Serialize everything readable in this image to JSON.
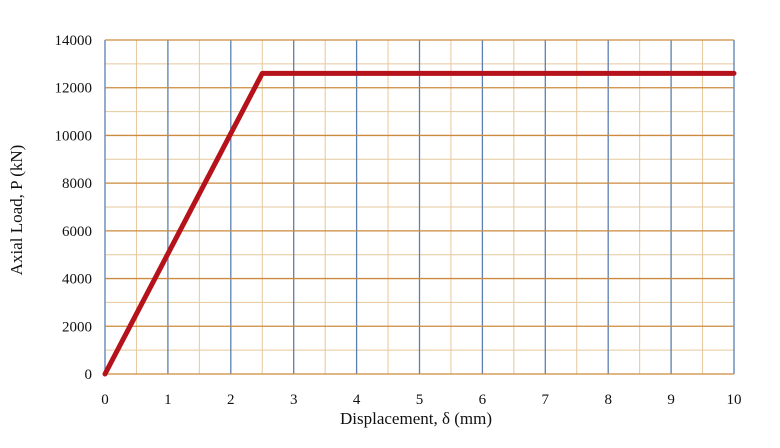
{
  "chart_data": {
    "type": "line",
    "xlabel": "Displacement, δ (mm)",
    "ylabel": "Axial Load, P (kN)",
    "xlim": [
      0,
      10
    ],
    "ylim": [
      0,
      14000
    ],
    "x_ticks": [
      "0",
      "1",
      "2",
      "3",
      "4",
      "5",
      "6",
      "7",
      "8",
      "9",
      "10"
    ],
    "y_ticks": [
      "0",
      "2000",
      "4000",
      "6000",
      "8000",
      "10000",
      "12000",
      "14000"
    ],
    "grid": true,
    "series": [
      {
        "x": [
          0,
          2.5,
          10
        ],
        "y": [
          0,
          12600,
          12600
        ],
        "color": "#b5121b"
      }
    ],
    "colors": {
      "vertical_grid": "#5b7fb0",
      "horizontal_grid": "#cc8a3e",
      "minor_grid": "#e6c79c",
      "line": "#b5121b"
    }
  }
}
